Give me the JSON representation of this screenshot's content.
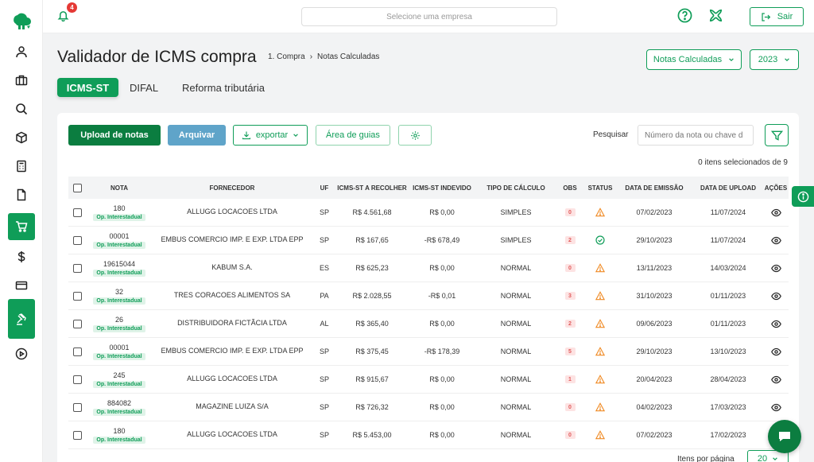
{
  "notifications": {
    "count": "4"
  },
  "company_select": {
    "placeholder": "Selecione uma empresa"
  },
  "logout": {
    "label": "Sair"
  },
  "page": {
    "title": "Validador de ICMS compra",
    "breadcrumb": [
      "1. Compra",
      "Notas Calculadas"
    ]
  },
  "header_selects": {
    "view": "Notas Calculadas",
    "year": "2023"
  },
  "tabs": [
    {
      "label": "ICMS-ST",
      "active": true
    },
    {
      "label": "DIFAL",
      "active": false
    },
    {
      "label": "Reforma tributária",
      "active": false
    }
  ],
  "toolbar": {
    "upload_label": "Upload de notas",
    "archive_label": "Arquivar",
    "export_label": "exportar",
    "guides_label": "Área de guias",
    "search_label": "Pesquisar",
    "search_placeholder": "Número da nota ou chave d"
  },
  "selected_count": "0 itens selecionados de 9",
  "table": {
    "headers": {
      "nota": "NOTA",
      "fornecedor": "FORNECEDOR",
      "uf": "UF",
      "icms_recolher": "ICMS-ST A RECOLHER",
      "icms_indevido": "ICMS-ST INDEVIDO",
      "tipo": "TIPO DE CÁLCULO",
      "obs": "OBS",
      "status": "STATUS",
      "emissao": "DATA DE EMISSÃO",
      "upload": "DATA DE UPLOAD",
      "acoes": "AÇÕES"
    },
    "rows": [
      {
        "nota": "180",
        "tag": "Op. Interestadual",
        "fornecedor": "ALLUGG LOCACOES LTDA",
        "uf": "SP",
        "recolher": "R$ 4.561,68",
        "indevido": "R$ 0,00",
        "tipo": "SIMPLES",
        "obs": "0",
        "status": "warning",
        "emissao": "07/02/2023",
        "upload": "11/07/2024"
      },
      {
        "nota": "00001",
        "tag": "Op. Interestadual",
        "fornecedor": "EMBUS COMERCIO IMP. E EXP. LTDA EPP",
        "uf": "SP",
        "recolher": "R$ 167,65",
        "indevido": "-R$ 678,49",
        "tipo": "SIMPLES",
        "obs": "2",
        "status": "ok",
        "emissao": "29/10/2023",
        "upload": "11/07/2024"
      },
      {
        "nota": "19615044",
        "tag": "Op. Interestadual",
        "fornecedor": "KABUM S.A.",
        "uf": "ES",
        "recolher": "R$ 625,23",
        "indevido": "R$ 0,00",
        "tipo": "NORMAL",
        "obs": "0",
        "status": "warning",
        "emissao": "13/11/2023",
        "upload": "14/03/2024"
      },
      {
        "nota": "32",
        "tag": "Op. Interestadual",
        "fornecedor": "TRES CORACOES ALIMENTOS SA",
        "uf": "PA",
        "recolher": "R$ 2.028,55",
        "indevido": "-R$ 0,01",
        "tipo": "NORMAL",
        "obs": "3",
        "status": "warning",
        "emissao": "31/10/2023",
        "upload": "01/11/2023"
      },
      {
        "nota": "26",
        "tag": "Op. Interestadual",
        "fornecedor": "DISTRIBUIDORA FICTÃ­CIA LTDA",
        "uf": "AL",
        "recolher": "R$ 365,40",
        "indevido": "R$ 0,00",
        "tipo": "NORMAL",
        "obs": "2",
        "status": "warning",
        "emissao": "09/06/2023",
        "upload": "01/11/2023"
      },
      {
        "nota": "00001",
        "tag": "Op. Interestadual",
        "fornecedor": "EMBUS COMERCIO IMP. E EXP. LTDA EPP",
        "uf": "SP",
        "recolher": "R$ 375,45",
        "indevido": "-R$ 178,39",
        "tipo": "NORMAL",
        "obs": "5",
        "status": "warning",
        "emissao": "29/10/2023",
        "upload": "13/10/2023"
      },
      {
        "nota": "245",
        "tag": "Op. Interestadual",
        "fornecedor": "ALLUGG LOCACOES LTDA",
        "uf": "SP",
        "recolher": "R$ 915,67",
        "indevido": "R$ 0,00",
        "tipo": "NORMAL",
        "obs": "1",
        "status": "warning",
        "emissao": "20/04/2023",
        "upload": "28/04/2023"
      },
      {
        "nota": "884082",
        "tag": "Op. Interestadual",
        "fornecedor": "MAGAZINE LUIZA S/A",
        "uf": "SP",
        "recolher": "R$ 726,32",
        "indevido": "R$ 0,00",
        "tipo": "NORMAL",
        "obs": "0",
        "status": "warning",
        "emissao": "04/02/2023",
        "upload": "17/03/2023"
      },
      {
        "nota": "180",
        "tag": "Op. Interestadual",
        "fornecedor": "ALLUGG LOCACOES LTDA",
        "uf": "SP",
        "recolher": "R$ 5.453,00",
        "indevido": "R$ 0,00",
        "tipo": "NORMAL",
        "obs": "0",
        "status": "warning",
        "emissao": "07/02/2023",
        "upload": "17/02/2023"
      }
    ]
  },
  "pagination": {
    "per_page_label": "Itens por página",
    "per_page_value": "20"
  },
  "colors": {
    "primary": "#0f9d58",
    "primary_dark": "#0b7d40",
    "archive": "#5fa4c9",
    "warning": "#f08a24",
    "danger": "#e53935"
  }
}
